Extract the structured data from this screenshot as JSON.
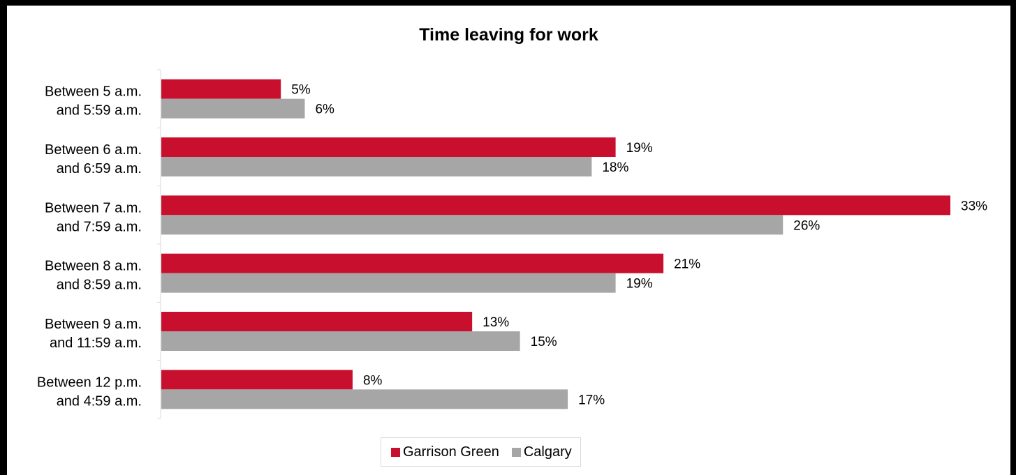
{
  "chart_data": {
    "type": "bar",
    "orientation": "horizontal",
    "title": "Time leaving for work",
    "categories": [
      [
        "Between 5 a.m.",
        "and 5:59 a.m."
      ],
      [
        "Between 6 a.m.",
        "and 6:59 a.m."
      ],
      [
        "Between 7 a.m.",
        "and 7:59 a.m."
      ],
      [
        "Between 8 a.m.",
        "and 8:59 a.m."
      ],
      [
        "Between 9 a.m.",
        "and 11:59 a.m."
      ],
      [
        "Between 12 p.m.",
        "and 4:59 a.m."
      ]
    ],
    "series": [
      {
        "name": "Garrison Green",
        "color": "#c8102e",
        "values": [
          5,
          19,
          33,
          21,
          13,
          8
        ],
        "labels": [
          "5%",
          "19%",
          "33%",
          "21%",
          "13%",
          "8%"
        ]
      },
      {
        "name": "Calgary",
        "color": "#a6a6a6",
        "values": [
          6,
          18,
          26,
          19,
          15,
          17
        ],
        "labels": [
          "6%",
          "18%",
          "26%",
          "19%",
          "15%",
          "17%"
        ]
      }
    ],
    "xlim": [
      0,
      33
    ],
    "grid": false,
    "legend": "bottom"
  }
}
